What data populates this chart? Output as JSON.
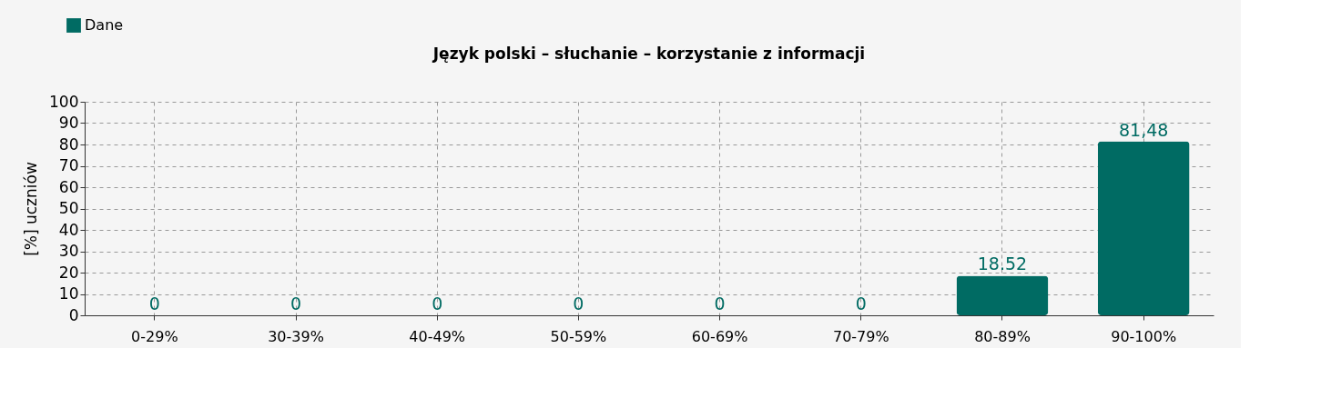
{
  "chart_data": {
    "type": "bar",
    "title": "Język polski – słuchanie – korzystanie z informacji",
    "ylabel": "[%] uczniów",
    "categories": [
      "0-29%",
      "30-39%",
      "40-49%",
      "50-59%",
      "60-69%",
      "70-79%",
      "80-89%",
      "90-100%"
    ],
    "series": [
      {
        "name": "Dane",
        "color": "#006b63",
        "values": [
          0,
          0,
          0,
          0,
          0,
          0,
          18.52,
          81.48
        ],
        "value_labels": [
          "0",
          "0",
          "0",
          "0",
          "0",
          "0",
          "18.52",
          "81,48"
        ]
      }
    ],
    "ylim": [
      0,
      100
    ],
    "yticks": [
      0,
      10,
      20,
      30,
      40,
      50,
      60,
      70,
      80,
      90,
      100
    ],
    "grid": true,
    "legend": "top left"
  }
}
